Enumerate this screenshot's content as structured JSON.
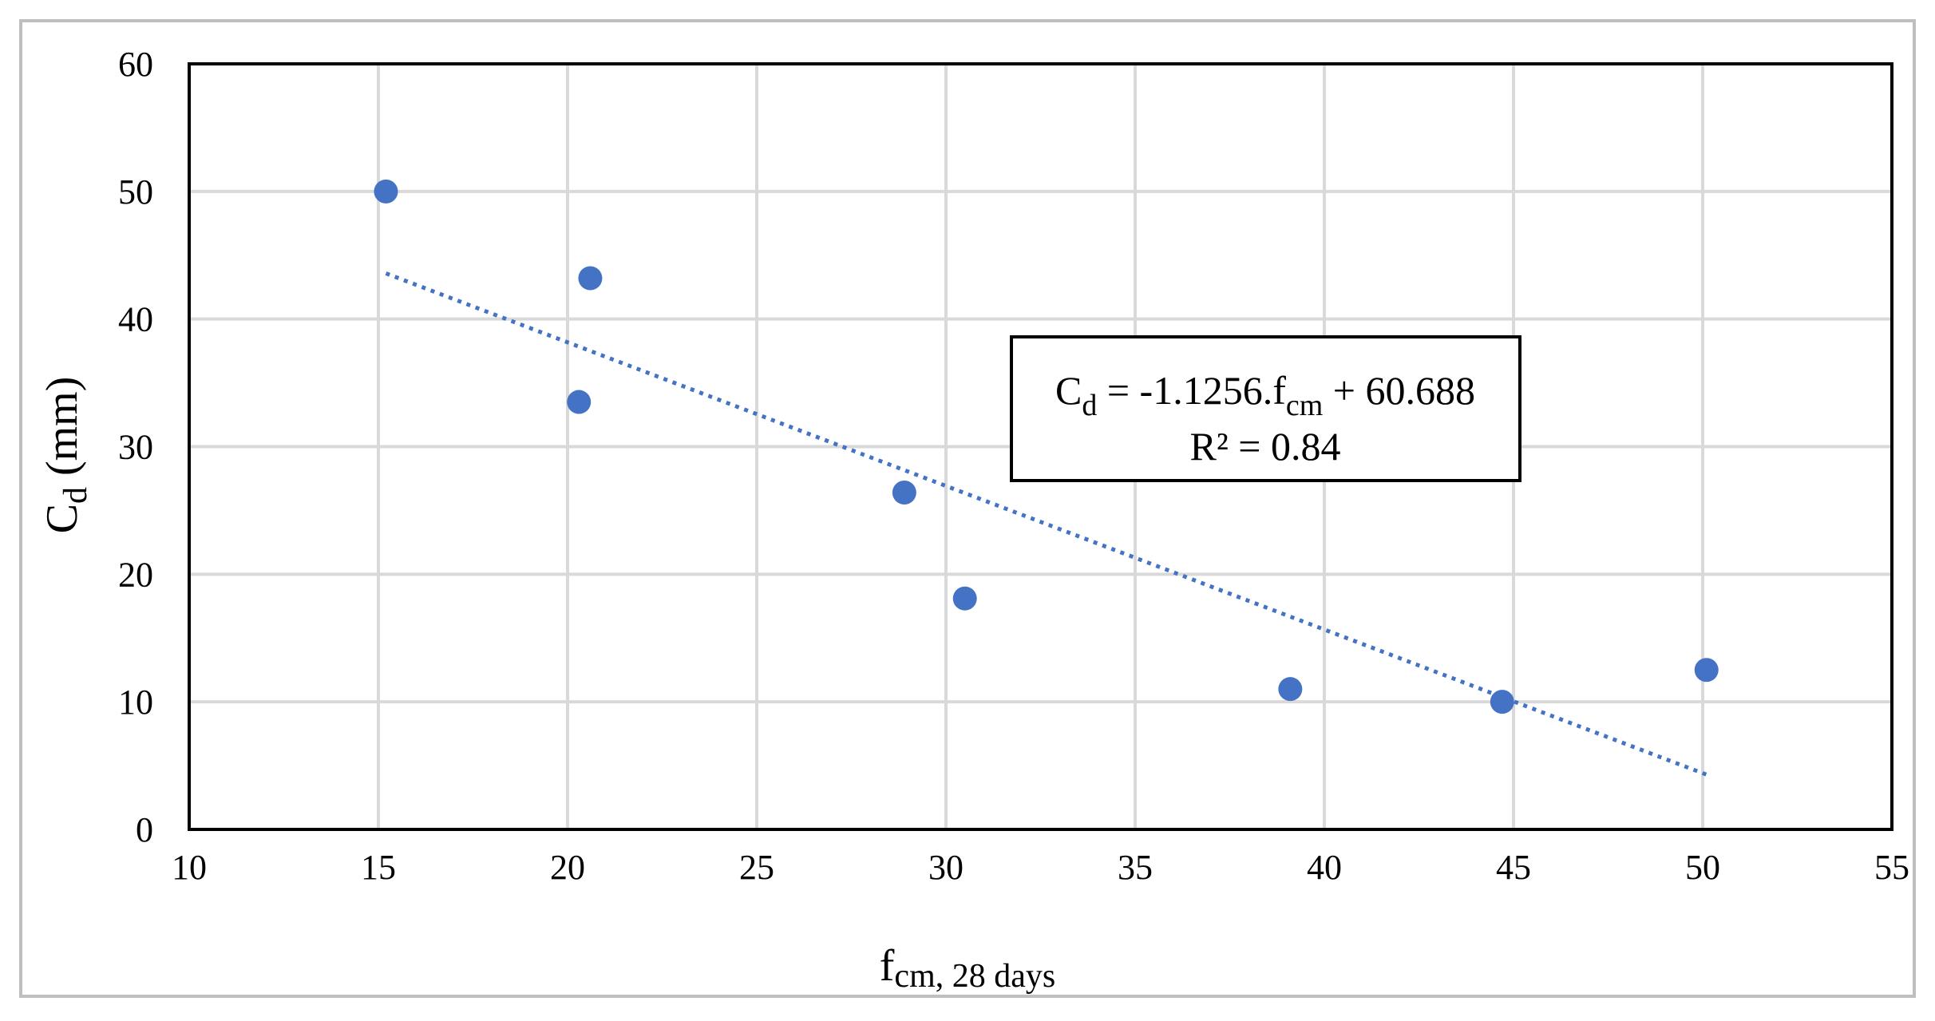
{
  "chart_data": {
    "type": "scatter",
    "title": "",
    "xlabel": {
      "main": "f",
      "sub": "cm, 28 days"
    },
    "ylabel": {
      "main": "C",
      "sub": "d",
      "unit": " (mm)"
    },
    "xlim": [
      10,
      55
    ],
    "ylim": [
      0,
      60
    ],
    "xticks": [
      10,
      15,
      20,
      25,
      30,
      35,
      40,
      45,
      50,
      55
    ],
    "yticks": [
      0,
      10,
      20,
      30,
      40,
      50,
      60
    ],
    "grid": true,
    "legend": "none",
    "series": [
      {
        "x": [
          15.2,
          20.6,
          20.3,
          28.9,
          30.5,
          39.1,
          44.7,
          50.1
        ],
        "y": [
          50.0,
          43.2,
          33.5,
          26.4,
          18.1,
          11.0,
          10.0,
          12.5
        ]
      }
    ],
    "trendline": {
      "type": "linear",
      "style": "dotted",
      "slope": -1.1256,
      "intercept": 60.688,
      "x_range": [
        15.2,
        50.1
      ]
    },
    "annotation": {
      "line1": {
        "C": "C",
        "d": "d",
        "mid": " = -1.1256.f",
        "cm": "cm",
        "end": " + 60.688"
      },
      "line2": "R² = 0.84"
    },
    "colors": {
      "marker": "#4472C4",
      "trendline": "#4472C4",
      "grid": "#D9D9D9",
      "axis": "#000000",
      "frame": "#BFBFBF"
    }
  }
}
